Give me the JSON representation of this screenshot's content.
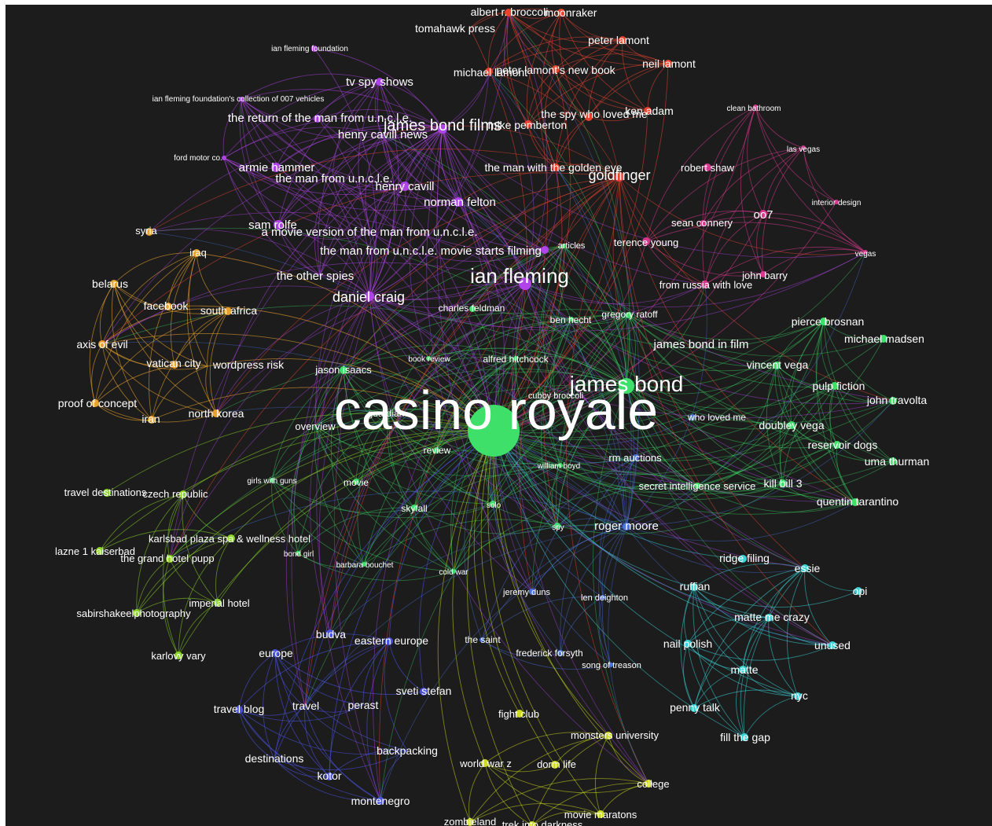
{
  "colors": {
    "background": "#1c1c1c",
    "red": "#e8432f",
    "purple": "#b044e8",
    "pink": "#d9388f",
    "orange": "#e8a12c",
    "green": "#3fe06a",
    "lime": "#8bd628",
    "blue": "#4a52e0",
    "cyan": "#3ad4d8",
    "yellow": "#cddc1e",
    "steel": "#4a74e0"
  },
  "nodes": [
    {
      "id": "casino_royale",
      "label": "casino royale",
      "c": "green"
    },
    {
      "id": "ian_fleming",
      "label": "ian fleming",
      "c": "purple"
    },
    {
      "id": "james_bond",
      "label": "james bond",
      "c": "green"
    },
    {
      "id": "james_bond_films",
      "label": "james bond films",
      "c": "purple"
    },
    {
      "id": "goldfinger",
      "label": "goldfinger",
      "c": "red"
    },
    {
      "id": "daniel_craig",
      "label": "daniel craig",
      "c": "purple"
    },
    {
      "id": "albert_broccoli",
      "label": "albert r. broccoli",
      "c": "red"
    },
    {
      "id": "moonraker",
      "label": "moonraker",
      "c": "red"
    },
    {
      "id": "tomahawk_press",
      "label": "tomahawk press",
      "c": "red"
    },
    {
      "id": "peter_lamont",
      "label": "peter lamont",
      "c": "red"
    },
    {
      "id": "neil_lamont",
      "label": "neil lamont",
      "c": "red"
    },
    {
      "id": "michael_lamont",
      "label": "michael lamont",
      "c": "red"
    },
    {
      "id": "peter_lamonts_new_book",
      "label": "peter lamont's new book",
      "c": "red"
    },
    {
      "id": "spy_who_loved_me",
      "label": "the spy who loved me",
      "c": "red"
    },
    {
      "id": "ken_adam",
      "label": "ken adam",
      "c": "red"
    },
    {
      "id": "mike_pemberton",
      "label": "mike pemberton",
      "c": "red"
    },
    {
      "id": "man_golden_eye",
      "label": "the man with the golden eye",
      "c": "red"
    },
    {
      "id": "robert_shaw",
      "label": "robert shaw",
      "c": "pink"
    },
    {
      "id": "clean_bathroom",
      "label": "clean bathroom",
      "c": "pink"
    },
    {
      "id": "las_vegas",
      "label": "las vegas",
      "c": "pink"
    },
    {
      "id": "interior_design",
      "label": "interior design",
      "c": "pink"
    },
    {
      "id": "vegas",
      "label": "vegas",
      "c": "pink"
    },
    {
      "id": "oo7",
      "label": "oo7",
      "c": "pink"
    },
    {
      "id": "sean_connery",
      "label": "sean connery",
      "c": "pink"
    },
    {
      "id": "terence_young",
      "label": "terence young",
      "c": "pink"
    },
    {
      "id": "john_barry",
      "label": "john barry",
      "c": "pink"
    },
    {
      "id": "from_russia",
      "label": "from russia with love",
      "c": "pink"
    },
    {
      "id": "ian_fleming_foundation",
      "label": "ian fleming foundation",
      "c": "purple"
    },
    {
      "id": "tv_spy_shows",
      "label": "tv spy shows",
      "c": "purple"
    },
    {
      "id": "iff_collection",
      "label": "ian fleming foundation's collection of 007 vehicles",
      "c": "purple"
    },
    {
      "id": "return_uncle",
      "label": "the return of the man from u.n.c.l.e.",
      "c": "purple"
    },
    {
      "id": "henry_cavill_news",
      "label": "henry cavill news",
      "c": "purple"
    },
    {
      "id": "ford_motor",
      "label": "ford motor co.",
      "c": "purple"
    },
    {
      "id": "armie_hammer",
      "label": "armie hammer",
      "c": "purple"
    },
    {
      "id": "man_from_uncle",
      "label": "the man from u.n.c.l.e.",
      "c": "purple"
    },
    {
      "id": "henry_cavill",
      "label": "henry cavill",
      "c": "purple"
    },
    {
      "id": "norman_felton",
      "label": "norman felton",
      "c": "purple"
    },
    {
      "id": "sam_rolfe",
      "label": "sam rolfe",
      "c": "purple"
    },
    {
      "id": "movie_version_uncle",
      "label": "a movie version of the man from u.n.c.l.e.",
      "c": "purple"
    },
    {
      "id": "uncle_starts_filming",
      "label": "the man from u.n.c.l.e. movie starts filming",
      "c": "purple"
    },
    {
      "id": "other_spies",
      "label": "the other spies",
      "c": "purple"
    },
    {
      "id": "articles",
      "label": "articles",
      "c": "green"
    },
    {
      "id": "charles_feldman",
      "label": "charles feldman",
      "c": "green"
    },
    {
      "id": "ben_hecht",
      "label": "ben hecht",
      "c": "green"
    },
    {
      "id": "gregory_ratoff",
      "label": "gregory ratoff",
      "c": "green"
    },
    {
      "id": "james_bond_in_film",
      "label": "james bond in film",
      "c": "purple"
    },
    {
      "id": "book_review",
      "label": "book review",
      "c": "green"
    },
    {
      "id": "alfred_hitchcock",
      "label": "alfred hitchcock",
      "c": "green"
    },
    {
      "id": "jason_isaacs",
      "label": "jason isaacs",
      "c": "green"
    },
    {
      "id": "cubby_broccoli",
      "label": "cubby broccoli",
      "c": "green"
    },
    {
      "id": "guardian",
      "label": "guardian",
      "c": "green"
    },
    {
      "id": "overview",
      "label": "overview",
      "c": "green"
    },
    {
      "id": "who_loved_me",
      "label": "who loved me",
      "c": "steel"
    },
    {
      "id": "review",
      "label": "review",
      "c": "green"
    },
    {
      "id": "rm_auctions",
      "label": "rm auctions",
      "c": "steel"
    },
    {
      "id": "william_boyd",
      "label": "william boyd",
      "c": "green"
    },
    {
      "id": "secret_intelligence",
      "label": "secret intelligence service",
      "c": "green"
    },
    {
      "id": "movie",
      "label": "movie",
      "c": "green"
    },
    {
      "id": "girls_with_guns",
      "label": "girls with guns",
      "c": "green"
    },
    {
      "id": "skyfall",
      "label": "skyfall",
      "c": "green"
    },
    {
      "id": "solo",
      "label": "solo",
      "c": "green"
    },
    {
      "id": "spy",
      "label": "spy",
      "c": "green"
    },
    {
      "id": "roger_moore",
      "label": "roger moore",
      "c": "steel"
    },
    {
      "id": "bond_girl",
      "label": "bond girl",
      "c": "green"
    },
    {
      "id": "barbara_bouchet",
      "label": "barbara bouchet",
      "c": "green"
    },
    {
      "id": "cold_war",
      "label": "cold war",
      "c": "green"
    },
    {
      "id": "jeremy_duns",
      "label": "jeremy duns",
      "c": "steel"
    },
    {
      "id": "len_deighton",
      "label": "len deighton",
      "c": "steel"
    },
    {
      "id": "the_saint",
      "label": "the saint",
      "c": "steel"
    },
    {
      "id": "frederick_forsyth",
      "label": "frederick forsyth",
      "c": "steel"
    },
    {
      "id": "song_of_treason",
      "label": "song of treason",
      "c": "steel"
    },
    {
      "id": "syria",
      "label": "syria",
      "c": "orange"
    },
    {
      "id": "iraq",
      "label": "iraq",
      "c": "orange"
    },
    {
      "id": "belarus",
      "label": "belarus",
      "c": "orange"
    },
    {
      "id": "facebook",
      "label": "facebook",
      "c": "orange"
    },
    {
      "id": "south_africa",
      "label": "south africa",
      "c": "orange"
    },
    {
      "id": "axis_of_evil",
      "label": "axis of evil",
      "c": "orange"
    },
    {
      "id": "vatican_city",
      "label": "vatican city",
      "c": "orange"
    },
    {
      "id": "wordpress_risk",
      "label": "wordpress risk",
      "c": "orange"
    },
    {
      "id": "proof_of_concept",
      "label": "proof of concept",
      "c": "orange"
    },
    {
      "id": "iran",
      "label": "iran",
      "c": "orange"
    },
    {
      "id": "north_korea",
      "label": "north korea",
      "c": "orange"
    },
    {
      "id": "pierce_brosnan",
      "label": "pierce brosnan",
      "c": "green"
    },
    {
      "id": "michael_madsen",
      "label": "michael madsen",
      "c": "green"
    },
    {
      "id": "vincent_vega",
      "label": "vincent vega",
      "c": "green"
    },
    {
      "id": "pulp_fiction",
      "label": "pulp fiction",
      "c": "green"
    },
    {
      "id": "john_travolta",
      "label": "john travolta",
      "c": "green"
    },
    {
      "id": "doubley_vega",
      "label": "doubley vega",
      "c": "green"
    },
    {
      "id": "reservoir_dogs",
      "label": "reservoir dogs",
      "c": "green"
    },
    {
      "id": "uma_thurman",
      "label": "uma thurman",
      "c": "green"
    },
    {
      "id": "kill_bill_3",
      "label": "kill bill 3",
      "c": "green"
    },
    {
      "id": "quentin_tarantino",
      "label": "quentin tarantino",
      "c": "green"
    },
    {
      "id": "travel_destinations",
      "label": "travel destinations",
      "c": "lime"
    },
    {
      "id": "czech_republic",
      "label": "czech republic",
      "c": "lime"
    },
    {
      "id": "karlsbad_plaza",
      "label": "karlsbad plaza spa & wellness hotel",
      "c": "lime"
    },
    {
      "id": "lazne_1_kaiserbad",
      "label": "lazne 1 kaiserbad",
      "c": "lime"
    },
    {
      "id": "grand_hotel_pupp",
      "label": "the grand hotel pupp",
      "c": "lime"
    },
    {
      "id": "imperial_hotel",
      "label": "imperial hotel",
      "c": "lime"
    },
    {
      "id": "sabirshakeel",
      "label": "sabirshakeelphotography",
      "c": "lime"
    },
    {
      "id": "karlovy_vary",
      "label": "karlovy vary",
      "c": "lime"
    },
    {
      "id": "ridge_filing",
      "label": "ridge filing",
      "c": "cyan"
    },
    {
      "id": "essie",
      "label": "essie",
      "c": "cyan"
    },
    {
      "id": "ruffian",
      "label": "ruffian",
      "c": "cyan"
    },
    {
      "id": "opi",
      "label": "opi",
      "c": "cyan"
    },
    {
      "id": "matte_me_crazy",
      "label": "matte me crazy",
      "c": "cyan"
    },
    {
      "id": "nail_polish",
      "label": "nail polish",
      "c": "cyan"
    },
    {
      "id": "unused",
      "label": "unused",
      "c": "cyan"
    },
    {
      "id": "matte",
      "label": "matte",
      "c": "cyan"
    },
    {
      "id": "nyc",
      "label": "nyc",
      "c": "cyan"
    },
    {
      "id": "penny_talk",
      "label": "penny talk",
      "c": "cyan"
    },
    {
      "id": "fill_the_gap",
      "label": "fill the gap",
      "c": "cyan"
    },
    {
      "id": "budva",
      "label": "budva",
      "c": "blue"
    },
    {
      "id": "eastern_europe",
      "label": "eastern europe",
      "c": "blue"
    },
    {
      "id": "europe",
      "label": "europe",
      "c": "blue"
    },
    {
      "id": "sveti_stefan",
      "label": "sveti stefan",
      "c": "blue"
    },
    {
      "id": "travel_blog",
      "label": "travel blog",
      "c": "blue"
    },
    {
      "id": "travel",
      "label": "travel",
      "c": "blue"
    },
    {
      "id": "perast",
      "label": "perast",
      "c": "blue"
    },
    {
      "id": "destinations",
      "label": "destinations",
      "c": "blue"
    },
    {
      "id": "backpacking",
      "label": "backpacking",
      "c": "blue"
    },
    {
      "id": "kotor",
      "label": "kotor",
      "c": "blue"
    },
    {
      "id": "montenegro",
      "label": "montenegro",
      "c": "blue"
    },
    {
      "id": "fight_club",
      "label": "fight club",
      "c": "yellow"
    },
    {
      "id": "monsters_university",
      "label": "monsters university",
      "c": "yellow"
    },
    {
      "id": "world_war_z",
      "label": "world war z",
      "c": "yellow"
    },
    {
      "id": "dorm_life",
      "label": "dorm life",
      "c": "yellow"
    },
    {
      "id": "college",
      "label": "college",
      "c": "yellow"
    },
    {
      "id": "movie_maratons",
      "label": "movie maratons",
      "c": "yellow"
    },
    {
      "id": "zombieland",
      "label": "zombieland",
      "c": "yellow"
    },
    {
      "id": "trek_into_darkness",
      "label": "trek into darkness",
      "c": "yellow"
    }
  ]
}
